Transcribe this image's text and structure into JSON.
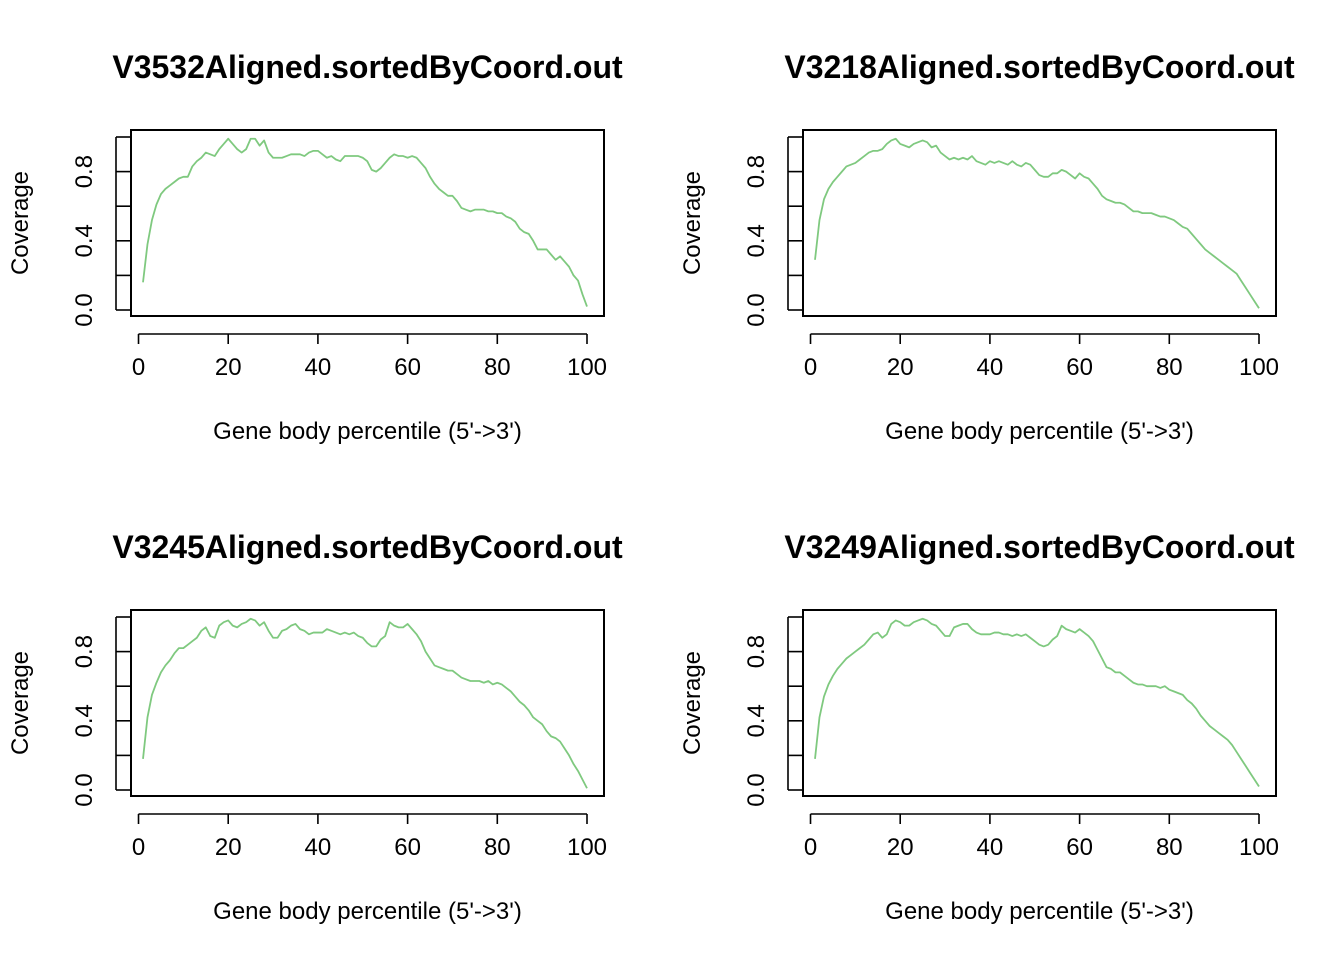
{
  "chart_data": [
    {
      "type": "line",
      "title": "V3532Aligned.sortedByCoord.out",
      "xlabel": "Gene body percentile (5'->3')",
      "ylabel": "Coverage",
      "xlim": [
        1,
        100
      ],
      "ylim": [
        0,
        1
      ],
      "xticks": [
        0,
        20,
        40,
        60,
        80,
        100
      ],
      "yticks": [
        0.0,
        0.2,
        0.4,
        0.6,
        0.8,
        1.0
      ],
      "ytick_labels": [
        "0.0",
        "",
        "0.4",
        "",
        "0.8",
        ""
      ],
      "grid": false,
      "series": [
        {
          "color": "#7fc97f",
          "x": [
            1,
            2,
            3,
            4,
            5,
            6,
            7,
            8,
            9,
            10,
            11,
            12,
            13,
            14,
            15,
            16,
            17,
            18,
            19,
            20,
            21,
            22,
            23,
            24,
            25,
            26,
            27,
            28,
            29,
            30,
            31,
            32,
            33,
            34,
            35,
            36,
            37,
            38,
            39,
            40,
            41,
            42,
            43,
            44,
            45,
            46,
            47,
            48,
            49,
            50,
            51,
            52,
            53,
            54,
            55,
            56,
            57,
            58,
            59,
            60,
            61,
            62,
            63,
            64,
            65,
            66,
            67,
            68,
            69,
            70,
            71,
            72,
            73,
            74,
            75,
            76,
            77,
            78,
            79,
            80,
            81,
            82,
            83,
            84,
            85,
            86,
            87,
            88,
            89,
            90,
            91,
            92,
            93,
            94,
            95,
            96,
            97,
            98,
            99,
            100
          ],
          "values": [
            0.16,
            0.38,
            0.52,
            0.61,
            0.67,
            0.7,
            0.72,
            0.74,
            0.76,
            0.77,
            0.77,
            0.83,
            0.86,
            0.88,
            0.91,
            0.9,
            0.89,
            0.93,
            0.96,
            0.99,
            0.96,
            0.93,
            0.91,
            0.93,
            0.99,
            0.99,
            0.95,
            0.98,
            0.91,
            0.88,
            0.88,
            0.88,
            0.89,
            0.9,
            0.9,
            0.9,
            0.89,
            0.91,
            0.92,
            0.92,
            0.9,
            0.88,
            0.89,
            0.87,
            0.86,
            0.89,
            0.89,
            0.89,
            0.89,
            0.88,
            0.86,
            0.81,
            0.8,
            0.82,
            0.85,
            0.88,
            0.9,
            0.89,
            0.89,
            0.88,
            0.89,
            0.88,
            0.85,
            0.82,
            0.77,
            0.73,
            0.7,
            0.68,
            0.66,
            0.66,
            0.63,
            0.59,
            0.58,
            0.57,
            0.58,
            0.58,
            0.58,
            0.57,
            0.57,
            0.56,
            0.56,
            0.54,
            0.53,
            0.51,
            0.47,
            0.45,
            0.44,
            0.4,
            0.35,
            0.35,
            0.35,
            0.32,
            0.29,
            0.31,
            0.28,
            0.25,
            0.2,
            0.17,
            0.09,
            0.02
          ]
        }
      ]
    },
    {
      "type": "line",
      "title": "V3218Aligned.sortedByCoord.out",
      "xlabel": "Gene body percentile (5'->3')",
      "ylabel": "Coverage",
      "xlim": [
        1,
        100
      ],
      "ylim": [
        0,
        1
      ],
      "xticks": [
        0,
        20,
        40,
        60,
        80,
        100
      ],
      "yticks": [
        0.0,
        0.2,
        0.4,
        0.6,
        0.8,
        1.0
      ],
      "ytick_labels": [
        "0.0",
        "",
        "0.4",
        "",
        "0.8",
        ""
      ],
      "grid": false,
      "series": [
        {
          "color": "#7fc97f",
          "x": [
            1,
            2,
            3,
            4,
            5,
            6,
            7,
            8,
            9,
            10,
            11,
            12,
            13,
            14,
            15,
            16,
            17,
            18,
            19,
            20,
            21,
            22,
            23,
            24,
            25,
            26,
            27,
            28,
            29,
            30,
            31,
            32,
            33,
            34,
            35,
            36,
            37,
            38,
            39,
            40,
            41,
            42,
            43,
            44,
            45,
            46,
            47,
            48,
            49,
            50,
            51,
            52,
            53,
            54,
            55,
            56,
            57,
            58,
            59,
            60,
            61,
            62,
            63,
            64,
            65,
            66,
            67,
            68,
            69,
            70,
            71,
            72,
            73,
            74,
            75,
            76,
            77,
            78,
            79,
            80,
            81,
            82,
            83,
            84,
            85,
            86,
            87,
            88,
            89,
            90,
            91,
            92,
            93,
            94,
            95,
            96,
            97,
            98,
            99,
            100
          ],
          "values": [
            0.29,
            0.52,
            0.64,
            0.7,
            0.74,
            0.77,
            0.8,
            0.83,
            0.84,
            0.85,
            0.87,
            0.89,
            0.91,
            0.92,
            0.92,
            0.93,
            0.96,
            0.98,
            0.99,
            0.96,
            0.95,
            0.94,
            0.96,
            0.97,
            0.98,
            0.97,
            0.94,
            0.95,
            0.91,
            0.89,
            0.87,
            0.88,
            0.87,
            0.88,
            0.87,
            0.89,
            0.86,
            0.85,
            0.84,
            0.86,
            0.85,
            0.86,
            0.85,
            0.84,
            0.86,
            0.84,
            0.83,
            0.85,
            0.84,
            0.81,
            0.78,
            0.77,
            0.77,
            0.79,
            0.79,
            0.81,
            0.8,
            0.78,
            0.76,
            0.79,
            0.77,
            0.76,
            0.73,
            0.7,
            0.66,
            0.64,
            0.63,
            0.62,
            0.62,
            0.61,
            0.59,
            0.57,
            0.57,
            0.56,
            0.56,
            0.56,
            0.55,
            0.54,
            0.54,
            0.53,
            0.52,
            0.5,
            0.48,
            0.47,
            0.44,
            0.41,
            0.38,
            0.35,
            0.33,
            0.31,
            0.29,
            0.27,
            0.25,
            0.23,
            0.21,
            0.17,
            0.13,
            0.09,
            0.05,
            0.01
          ]
        }
      ]
    },
    {
      "type": "line",
      "title": "V3245Aligned.sortedByCoord.out",
      "xlabel": "Gene body percentile (5'->3')",
      "ylabel": "Coverage",
      "xlim": [
        1,
        100
      ],
      "ylim": [
        0,
        1
      ],
      "xticks": [
        0,
        20,
        40,
        60,
        80,
        100
      ],
      "yticks": [
        0.0,
        0.2,
        0.4,
        0.6,
        0.8,
        1.0
      ],
      "ytick_labels": [
        "0.0",
        "",
        "0.4",
        "",
        "0.8",
        ""
      ],
      "grid": false,
      "series": [
        {
          "color": "#7fc97f",
          "x": [
            1,
            2,
            3,
            4,
            5,
            6,
            7,
            8,
            9,
            10,
            11,
            12,
            13,
            14,
            15,
            16,
            17,
            18,
            19,
            20,
            21,
            22,
            23,
            24,
            25,
            26,
            27,
            28,
            29,
            30,
            31,
            32,
            33,
            34,
            35,
            36,
            37,
            38,
            39,
            40,
            41,
            42,
            43,
            44,
            45,
            46,
            47,
            48,
            49,
            50,
            51,
            52,
            53,
            54,
            55,
            56,
            57,
            58,
            59,
            60,
            61,
            62,
            63,
            64,
            65,
            66,
            67,
            68,
            69,
            70,
            71,
            72,
            73,
            74,
            75,
            76,
            77,
            78,
            79,
            80,
            81,
            82,
            83,
            84,
            85,
            86,
            87,
            88,
            89,
            90,
            91,
            92,
            93,
            94,
            95,
            96,
            97,
            98,
            99,
            100
          ],
          "values": [
            0.18,
            0.42,
            0.55,
            0.62,
            0.68,
            0.72,
            0.75,
            0.79,
            0.82,
            0.82,
            0.84,
            0.86,
            0.88,
            0.92,
            0.94,
            0.89,
            0.88,
            0.95,
            0.97,
            0.98,
            0.95,
            0.94,
            0.96,
            0.97,
            0.99,
            0.98,
            0.95,
            0.97,
            0.92,
            0.88,
            0.88,
            0.92,
            0.93,
            0.95,
            0.96,
            0.93,
            0.92,
            0.9,
            0.91,
            0.91,
            0.91,
            0.93,
            0.92,
            0.91,
            0.9,
            0.91,
            0.9,
            0.91,
            0.89,
            0.88,
            0.85,
            0.83,
            0.83,
            0.87,
            0.89,
            0.97,
            0.95,
            0.94,
            0.94,
            0.96,
            0.93,
            0.9,
            0.86,
            0.8,
            0.76,
            0.72,
            0.71,
            0.7,
            0.69,
            0.69,
            0.67,
            0.65,
            0.64,
            0.63,
            0.63,
            0.63,
            0.62,
            0.63,
            0.61,
            0.62,
            0.61,
            0.59,
            0.57,
            0.54,
            0.51,
            0.49,
            0.46,
            0.42,
            0.4,
            0.38,
            0.34,
            0.31,
            0.3,
            0.28,
            0.24,
            0.2,
            0.15,
            0.11,
            0.06,
            0.01
          ]
        }
      ]
    },
    {
      "type": "line",
      "title": "V3249Aligned.sortedByCoord.out",
      "xlabel": "Gene body percentile (5'->3')",
      "ylabel": "Coverage",
      "xlim": [
        1,
        100
      ],
      "ylim": [
        0,
        1
      ],
      "xticks": [
        0,
        20,
        40,
        60,
        80,
        100
      ],
      "yticks": [
        0.0,
        0.2,
        0.4,
        0.6,
        0.8,
        1.0
      ],
      "ytick_labels": [
        "0.0",
        "",
        "0.4",
        "",
        "0.8",
        ""
      ],
      "grid": false,
      "series": [
        {
          "color": "#7fc97f",
          "x": [
            1,
            2,
            3,
            4,
            5,
            6,
            7,
            8,
            9,
            10,
            11,
            12,
            13,
            14,
            15,
            16,
            17,
            18,
            19,
            20,
            21,
            22,
            23,
            24,
            25,
            26,
            27,
            28,
            29,
            30,
            31,
            32,
            33,
            34,
            35,
            36,
            37,
            38,
            39,
            40,
            41,
            42,
            43,
            44,
            45,
            46,
            47,
            48,
            49,
            50,
            51,
            52,
            53,
            54,
            55,
            56,
            57,
            58,
            59,
            60,
            61,
            62,
            63,
            64,
            65,
            66,
            67,
            68,
            69,
            70,
            71,
            72,
            73,
            74,
            75,
            76,
            77,
            78,
            79,
            80,
            81,
            82,
            83,
            84,
            85,
            86,
            87,
            88,
            89,
            90,
            91,
            92,
            93,
            94,
            95,
            96,
            97,
            98,
            99,
            100
          ],
          "values": [
            0.18,
            0.42,
            0.54,
            0.61,
            0.66,
            0.7,
            0.73,
            0.76,
            0.78,
            0.8,
            0.82,
            0.84,
            0.87,
            0.9,
            0.91,
            0.88,
            0.9,
            0.96,
            0.98,
            0.97,
            0.95,
            0.95,
            0.97,
            0.98,
            0.99,
            0.98,
            0.96,
            0.95,
            0.92,
            0.89,
            0.89,
            0.94,
            0.95,
            0.96,
            0.96,
            0.93,
            0.91,
            0.9,
            0.9,
            0.9,
            0.91,
            0.91,
            0.9,
            0.9,
            0.89,
            0.9,
            0.89,
            0.9,
            0.88,
            0.86,
            0.84,
            0.83,
            0.84,
            0.87,
            0.89,
            0.95,
            0.93,
            0.92,
            0.91,
            0.93,
            0.91,
            0.89,
            0.86,
            0.81,
            0.76,
            0.71,
            0.7,
            0.68,
            0.68,
            0.66,
            0.64,
            0.62,
            0.61,
            0.61,
            0.6,
            0.6,
            0.6,
            0.59,
            0.6,
            0.58,
            0.57,
            0.56,
            0.55,
            0.52,
            0.5,
            0.47,
            0.43,
            0.4,
            0.37,
            0.35,
            0.33,
            0.31,
            0.29,
            0.26,
            0.22,
            0.18,
            0.14,
            0.1,
            0.06,
            0.02
          ]
        }
      ]
    }
  ]
}
